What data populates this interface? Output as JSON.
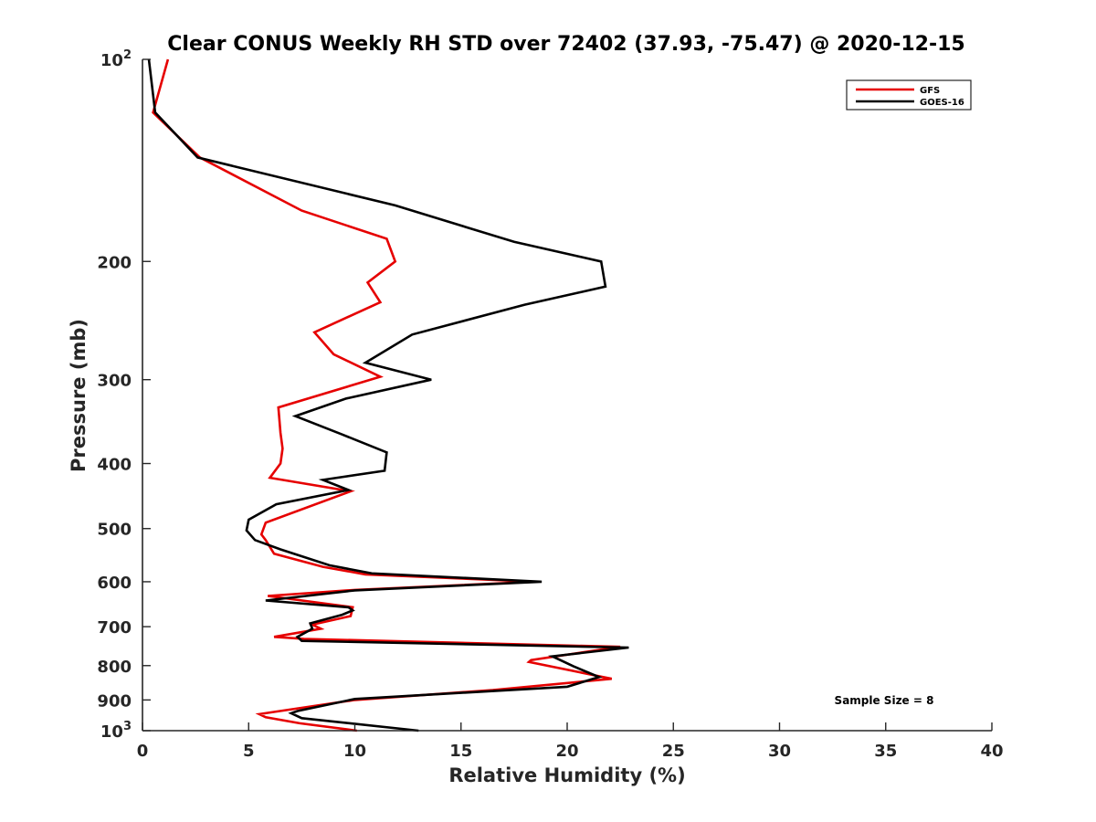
{
  "chart_data": {
    "type": "line",
    "title": "Clear CONUS Weekly RH STD over 72402 (37.93, -75.47) @ 2020-12-15",
    "xlabel": "Relative Humidity (%)",
    "ylabel": "Pressure (mb)",
    "xlim": [
      0,
      40
    ],
    "ylim": [
      100,
      1000
    ],
    "yscale": "log",
    "y_reversed": true,
    "grid": false,
    "x_ticks": [
      "0",
      "5",
      "10",
      "15",
      "20",
      "25",
      "30",
      "35",
      "40"
    ],
    "y_ticks": [
      {
        "value": 100,
        "base": "10",
        "exp": "2"
      },
      {
        "value": 200,
        "label": "200"
      },
      {
        "value": 300,
        "label": "300"
      },
      {
        "value": 400,
        "label": "400"
      },
      {
        "value": 500,
        "label": "500"
      },
      {
        "value": 600,
        "label": "600"
      },
      {
        "value": 700,
        "label": "700"
      },
      {
        "value": 800,
        "label": "800"
      },
      {
        "value": 900,
        "label": "900"
      },
      {
        "value": 1000,
        "base": "10",
        "exp": "3"
      }
    ],
    "legend_position": "top-right",
    "annotation": "Sample Size = 8",
    "series": [
      {
        "name": "GFS",
        "color": "#e60000",
        "points": [
          [
            1.2,
            100
          ],
          [
            0.5,
            120
          ],
          [
            2.7,
            140
          ],
          [
            7.5,
            168
          ],
          [
            11.5,
            185
          ],
          [
            11.9,
            200
          ],
          [
            10.6,
            215
          ],
          [
            11.2,
            230
          ],
          [
            8.1,
            255
          ],
          [
            9.0,
            275
          ],
          [
            11.2,
            297
          ],
          [
            6.4,
            330
          ],
          [
            6.5,
            360
          ],
          [
            6.6,
            380
          ],
          [
            6.5,
            400
          ],
          [
            6.0,
            420
          ],
          [
            9.8,
            440
          ],
          [
            5.8,
            490
          ],
          [
            5.6,
            510
          ],
          [
            5.8,
            520
          ],
          [
            6.2,
            545
          ],
          [
            8.5,
            570
          ],
          [
            10.5,
            585
          ],
          [
            18.5,
            600
          ],
          [
            10.0,
            617
          ],
          [
            5.9,
            630
          ],
          [
            9.9,
            655
          ],
          [
            9.8,
            675
          ],
          [
            8.0,
            695
          ],
          [
            8.4,
            705
          ],
          [
            6.2,
            725
          ],
          [
            7.6,
            730
          ],
          [
            22.5,
            750
          ],
          [
            18.3,
            785
          ],
          [
            18.2,
            790
          ],
          [
            22.1,
            837
          ],
          [
            16.5,
            870
          ],
          [
            10.0,
            900
          ],
          [
            5.5,
            945
          ],
          [
            5.8,
            955
          ],
          [
            7.4,
            975
          ],
          [
            10.1,
            1000
          ]
        ]
      },
      {
        "name": "GOES-16",
        "color": "#000000",
        "points": [
          [
            0.3,
            100
          ],
          [
            0.6,
            120
          ],
          [
            2.6,
            140
          ],
          [
            11.9,
            165
          ],
          [
            17.5,
            187
          ],
          [
            21.6,
            200
          ],
          [
            21.8,
            218
          ],
          [
            18.0,
            232
          ],
          [
            12.7,
            257
          ],
          [
            10.5,
            283
          ],
          [
            13.6,
            300
          ],
          [
            9.6,
            320
          ],
          [
            7.2,
            340
          ],
          [
            9.4,
            362
          ],
          [
            11.5,
            385
          ],
          [
            11.4,
            410
          ],
          [
            8.5,
            423
          ],
          [
            9.7,
            438
          ],
          [
            6.3,
            460
          ],
          [
            5.0,
            485
          ],
          [
            4.9,
            503
          ],
          [
            5.3,
            520
          ],
          [
            6.5,
            537
          ],
          [
            8.8,
            567
          ],
          [
            10.8,
            583
          ],
          [
            18.8,
            600
          ],
          [
            10.0,
            618
          ],
          [
            5.8,
            640
          ],
          [
            9.7,
            655
          ],
          [
            9.9,
            662
          ],
          [
            9.4,
            672
          ],
          [
            7.9,
            692
          ],
          [
            8.0,
            705
          ],
          [
            7.3,
            725
          ],
          [
            7.5,
            735
          ],
          [
            22.9,
            752
          ],
          [
            19.3,
            775
          ],
          [
            20.3,
            802
          ],
          [
            21.5,
            832
          ],
          [
            20.0,
            860
          ],
          [
            10.0,
            897
          ],
          [
            7.3,
            935
          ],
          [
            7.0,
            942
          ],
          [
            7.5,
            958
          ],
          [
            13.0,
            1000
          ]
        ]
      }
    ]
  }
}
